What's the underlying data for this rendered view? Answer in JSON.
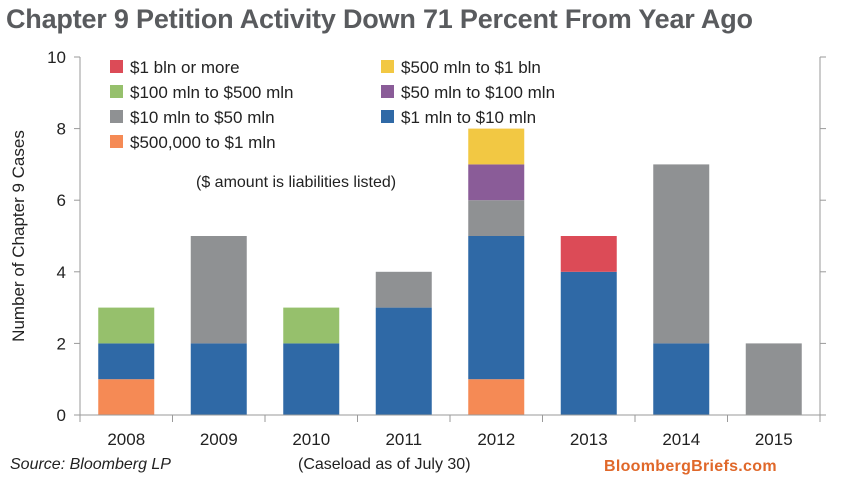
{
  "title": "Chapter 9 Petition Activity Down 71 Percent From Year Ago",
  "source": "Source: Bloomberg LP",
  "caseload_note": "(Caseload as of July 30)",
  "brand": "BloombergBriefs.com",
  "chart_data": {
    "type": "bar",
    "stacked": true,
    "title": "Chapter 9 Petition Activity Down 71 Percent From Year Ago",
    "xlabel": "",
    "ylabel": "Number of Chapter 9 Cases",
    "ylim": [
      0,
      10
    ],
    "yticks": [
      0,
      2,
      4,
      6,
      8,
      10
    ],
    "grid": false,
    "legend_position": "top-left",
    "annotation": "($ amount is liabilities listed)",
    "categories": [
      "2008",
      "2009",
      "2010",
      "2011",
      "2012",
      "2013",
      "2014",
      "2015"
    ],
    "series": [
      {
        "name": "$500,000 to $1 mln",
        "color": "#f58a55",
        "values": [
          1,
          0,
          0,
          0,
          1,
          0,
          0,
          0
        ]
      },
      {
        "name": "$1 mln to $10 mln",
        "color": "#2f69a6",
        "values": [
          1,
          2,
          2,
          3,
          4,
          4,
          2,
          0
        ]
      },
      {
        "name": "$10 mln to $50 mln",
        "color": "#8f9193",
        "values": [
          0,
          3,
          0,
          1,
          1,
          0,
          5,
          2
        ]
      },
      {
        "name": "$50 mln to $100 mln",
        "color": "#8a5c98",
        "values": [
          0,
          0,
          0,
          0,
          1,
          0,
          0,
          0
        ]
      },
      {
        "name": "$100 mln to $500 mln",
        "color": "#96c06c",
        "values": [
          1,
          0,
          1,
          0,
          0,
          0,
          0,
          0
        ]
      },
      {
        "name": "$500 mln to $1 bln",
        "color": "#f2c843",
        "values": [
          0,
          0,
          0,
          0,
          1,
          0,
          0,
          0
        ]
      },
      {
        "name": "$1 bln or more",
        "color": "#dc4b57",
        "values": [
          0,
          0,
          0,
          0,
          0,
          1,
          0,
          0
        ]
      }
    ],
    "legend_order": [
      "$1 bln or more",
      "$500 mln to $1 bln",
      "$100 mln to $500 mln",
      "$50 mln to $100 mln",
      "$10 mln to $50 mln",
      "$1 mln to $10 mln",
      "$500,000 to $1 mln"
    ]
  }
}
